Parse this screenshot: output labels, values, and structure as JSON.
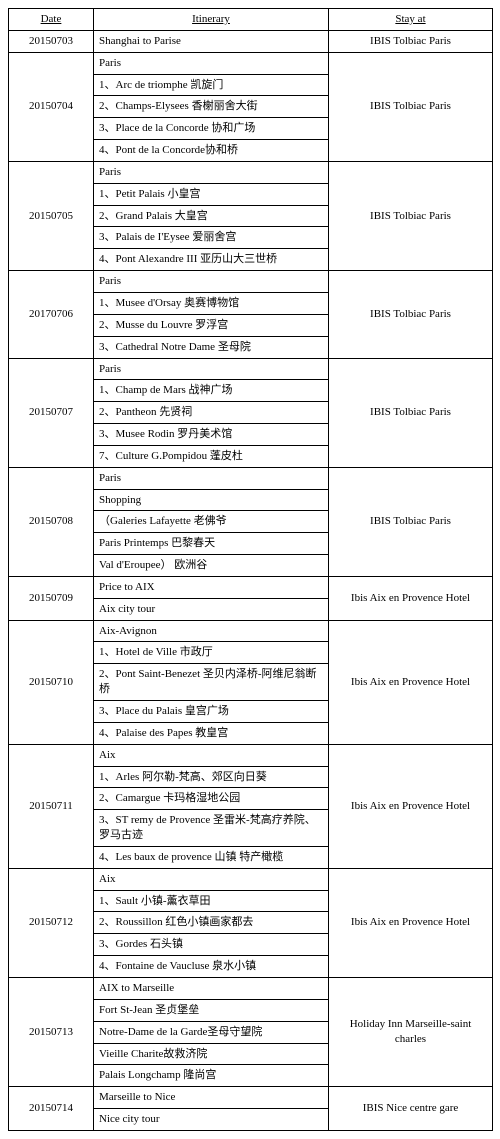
{
  "headers": {
    "date": "Date",
    "itinerary": "Itinerary",
    "stay": "Stay at"
  },
  "days": [
    {
      "date": "20150703",
      "stay": "IBIS Tolbiac Paris",
      "items": [
        "Shanghai to Parise"
      ]
    },
    {
      "date": "20150704",
      "stay": "IBIS Tolbiac Paris",
      "items": [
        "Paris",
        "1、Arc de triomphe 凯旋门",
        "2、Champs-Elysees 香榭丽舍大街",
        "3、Place de la Concorde 协和广场",
        "4、Pont de la Concorde协和桥"
      ]
    },
    {
      "date": "20150705",
      "stay": "IBIS Tolbiac Paris",
      "items": [
        "Paris",
        "1、Petit Palais 小皇宫",
        "2、Grand Palais  大皇宫",
        "3、Palais de I'Eysee 爱丽舍宫",
        "4、Pont Alexandre III 亚历山大三世桥"
      ]
    },
    {
      "date": "20170706",
      "stay": "IBIS Tolbiac Paris",
      "items": [
        "Paris",
        "1、Musee d'Orsay  奥赛博物馆",
        "2、Musse du Louvre 罗浮宫",
        "3、Cathedral Notre Dame 圣母院"
      ]
    },
    {
      "date": "20150707",
      "stay": "IBIS Tolbiac Paris",
      "items": [
        "Paris",
        "1、Champ de Mars 战神广场",
        "2、Pantheon  先贤祠",
        "3、Musee Rodin 罗丹美术馆",
        "7、Culture G.Pompidou 蓬皮杜"
      ]
    },
    {
      "date": "20150708",
      "stay": "IBIS Tolbiac Paris",
      "items": [
        "Paris",
        "Shopping",
        "（Galeries Lafayette 老佛爷",
        "Paris Printemps 巴黎春天",
        "Val d'Eroupee） 欧洲谷"
      ]
    },
    {
      "date": "20150709",
      "stay": "Ibis Aix en Provence Hotel",
      "items": [
        "Price to AIX",
        "Aix city tour"
      ]
    },
    {
      "date": "20150710",
      "stay": "Ibis Aix en Provence Hotel",
      "items": [
        "Aix-Avignon",
        "1、Hotel de Ville  市政厅",
        "2、Pont Saint-Benezet 圣贝内泽桥-阿维尼翁断桥",
        "3、Place du Palais  皇宫广场",
        "4、Palaise des Papes 教皇宫"
      ]
    },
    {
      "date": "20150711",
      "stay": "Ibis Aix en Provence Hotel",
      "items": [
        "Aix",
        "1、Arles 阿尔勒-梵高、郊区向日葵",
        "2、Camargue 卡玛格湿地公园",
        "3、ST remy de Provence 圣雷米-梵高疗养院、罗马古迹",
        "4、Les baux de provence  山镇 特产橄榄"
      ]
    },
    {
      "date": "20150712",
      "stay": "Ibis Aix en Provence Hotel",
      "items": [
        "Aix",
        "1、Sault 小镇-薰衣草田",
        "2、Roussillon  红色小镇画家都去",
        "3、Gordes  石头镇",
        "4、Fontaine de Vaucluse 泉水小镇"
      ]
    },
    {
      "date": "20150713",
      "stay": "Holiday Inn Marseille-saint charles",
      "items": [
        "AIX to Marseille",
        "Fort St-Jean 圣贞堡垒",
        "Notre-Dame de la Garde圣母守望院",
        "Vieille Charite故救济院",
        "Palais Longchamp 隆尚宫"
      ]
    },
    {
      "date": "20150714",
      "stay": "IBIS Nice centre gare",
      "items": [
        "Marseille to Nice",
        "Nice city tour"
      ]
    }
  ]
}
